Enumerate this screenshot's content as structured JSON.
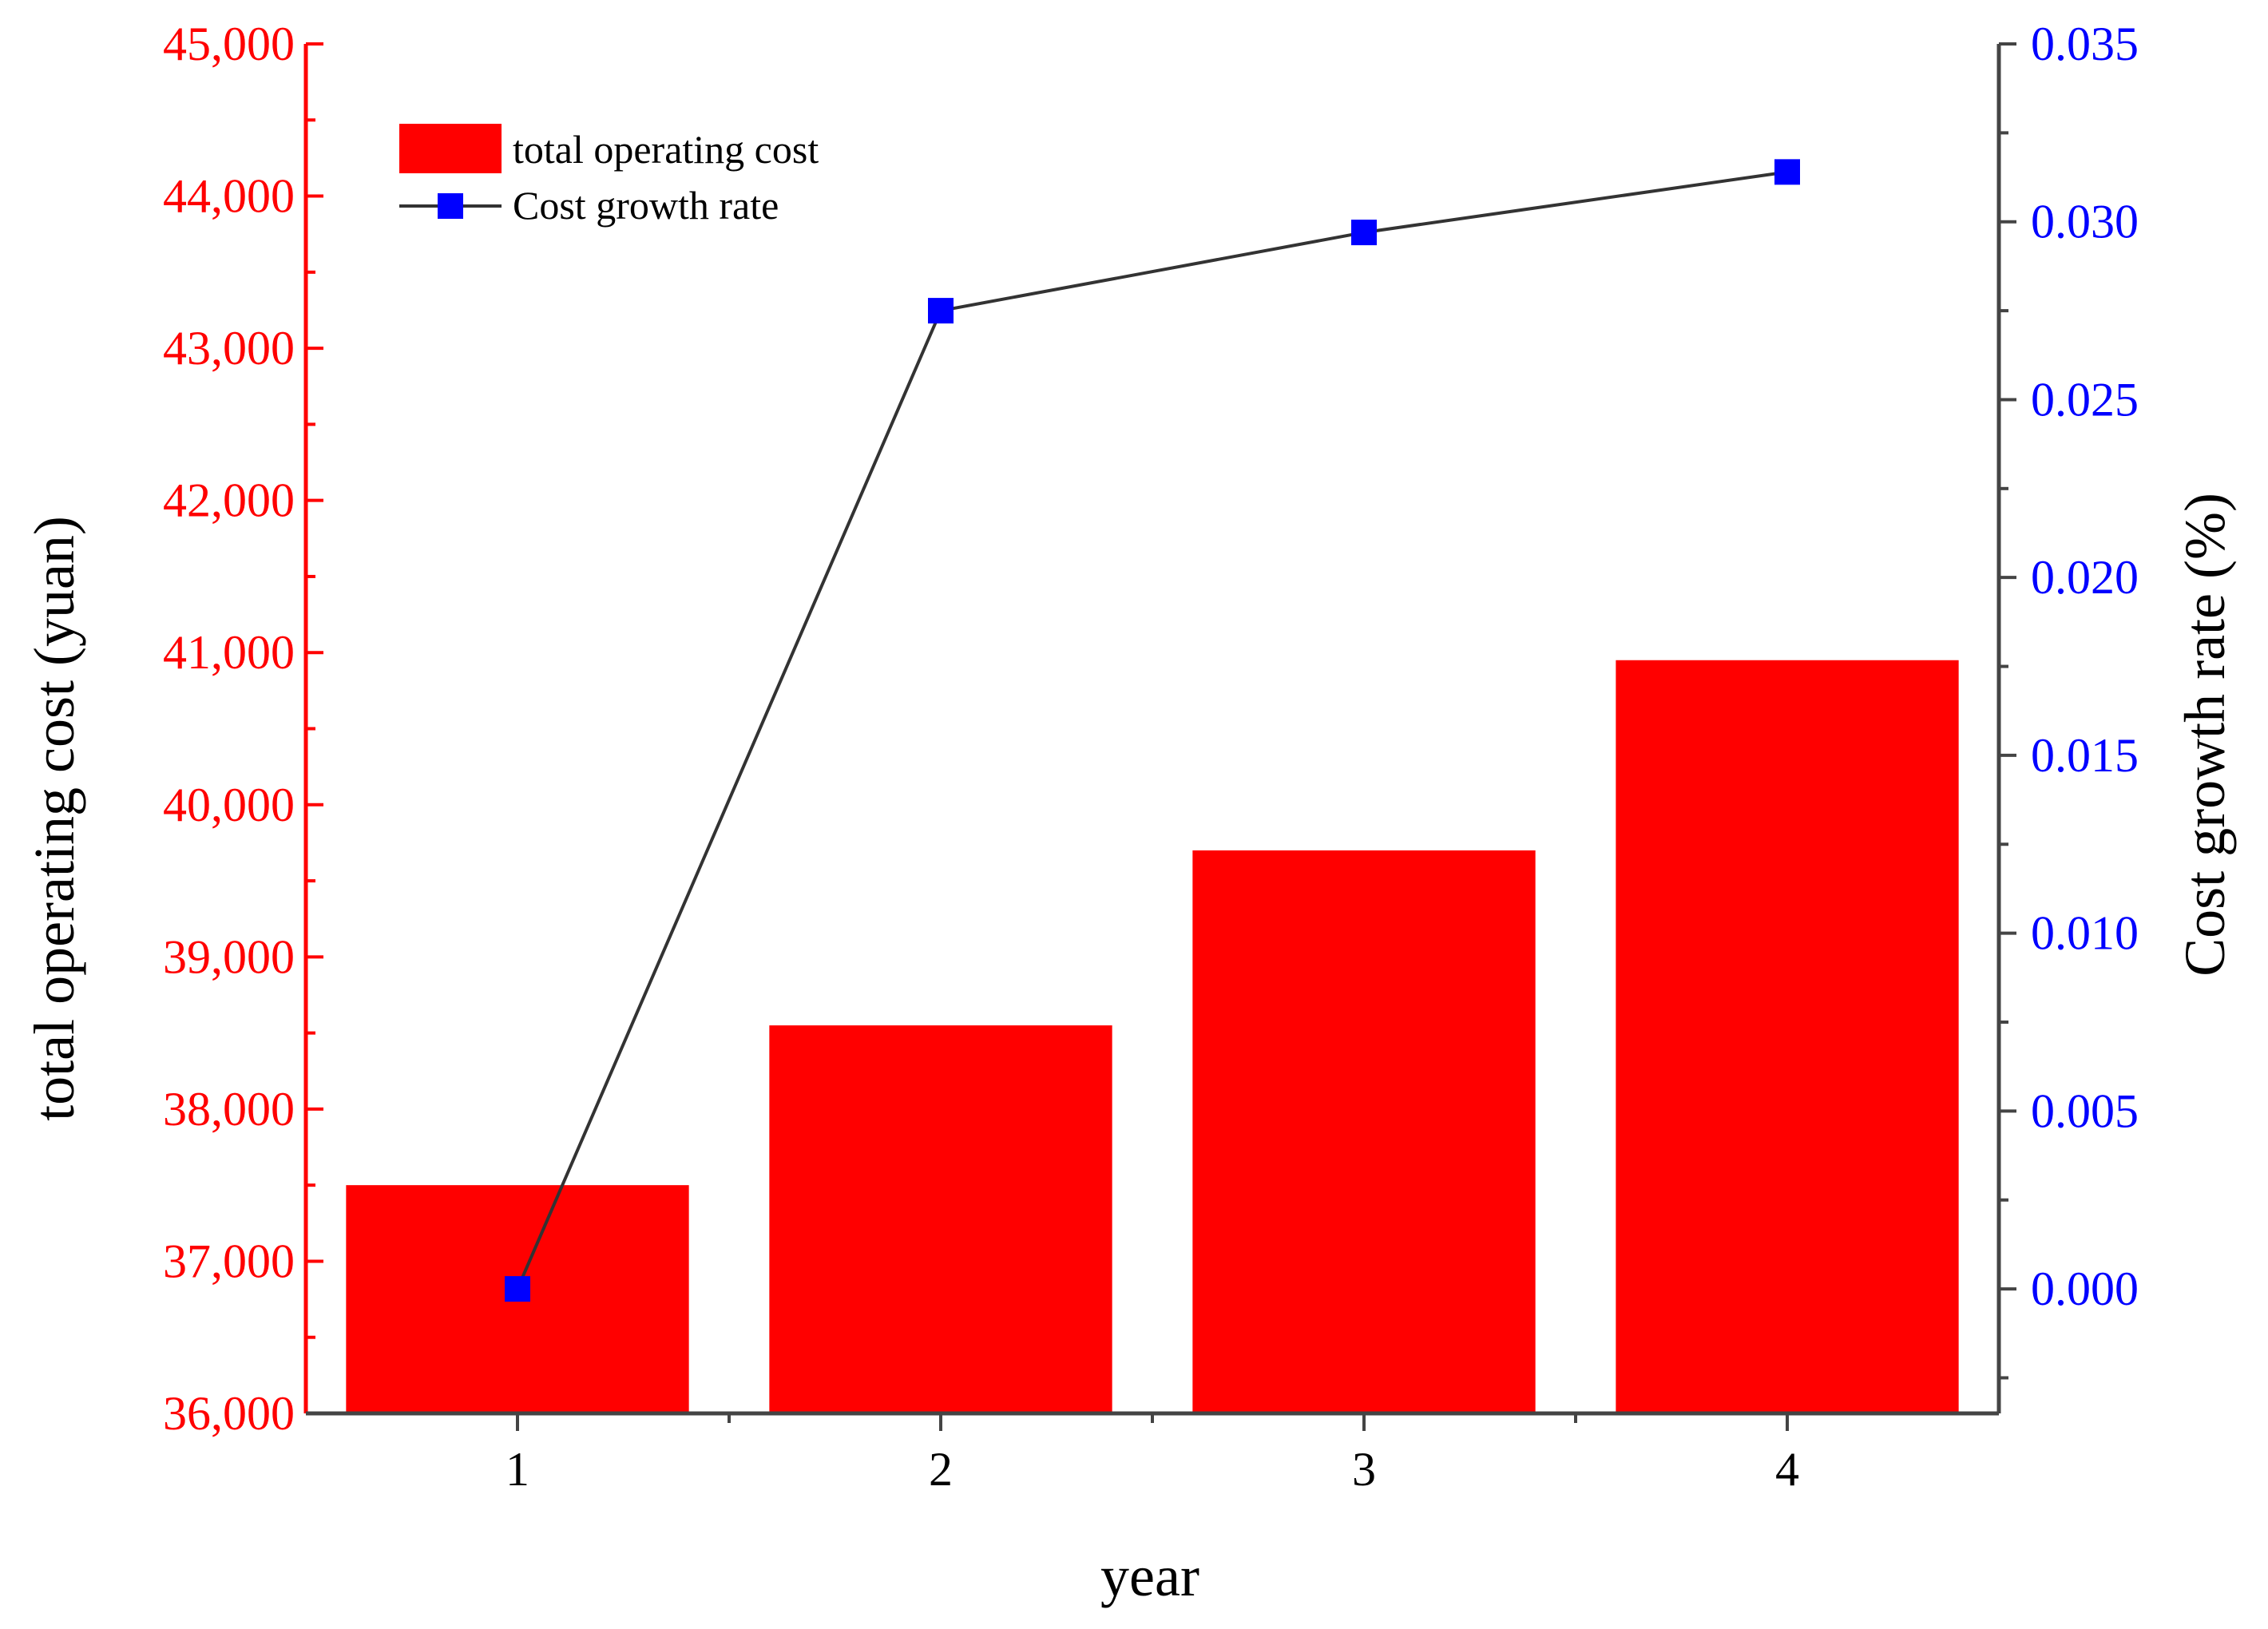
{
  "chart_data": {
    "type": "bar",
    "categories": [
      "1",
      "2",
      "3",
      "4"
    ],
    "xlabel": "year",
    "left_axis": {
      "label": "total operating cost (yuan)",
      "min": 36000,
      "max": 45000,
      "step": 1000,
      "tick_labels": [
        "36,000",
        "37,000",
        "38,000",
        "39,000",
        "40,000",
        "41,000",
        "42,000",
        "43,000",
        "44,000",
        "45,000"
      ],
      "color": "#ff0000"
    },
    "right_axis": {
      "label": "Cost growth rate (%)",
      "min": -0.0035,
      "max": 0.035,
      "step": 0.005,
      "tick_values": [
        0,
        0.005,
        0.01,
        0.015,
        0.02,
        0.025,
        0.03,
        0.035
      ],
      "tick_labels": [
        "0.000",
        "0.005",
        "0.010",
        "0.015",
        "0.020",
        "0.025",
        "0.030",
        "0.035"
      ],
      "color": "#0000ff"
    },
    "series": [
      {
        "name": "total operating cost",
        "type": "bar",
        "axis": "left",
        "color": "#ff0000",
        "values": [
          37500,
          38550,
          39700,
          40950
        ]
      },
      {
        "name": "Cost growth rate",
        "type": "line",
        "axis": "right",
        "color": "#0000ff",
        "line_color": "#333333",
        "values": [
          0.0,
          0.0275,
          0.0297,
          0.0314
        ]
      }
    ],
    "legend": {
      "position": "top-left"
    },
    "grid": false
  }
}
